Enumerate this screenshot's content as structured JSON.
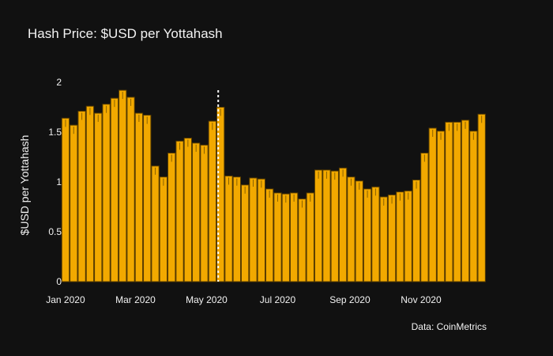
{
  "title": "Hash Price: $USD per Yottahash",
  "source": "Data: CoinMetrics",
  "colors": {
    "background": "#111111",
    "bar_fill": "#f2a900",
    "bar_border": "#5a3e00",
    "error_bar": "#8a6200",
    "text": "#f2f2f2",
    "marker_line": "#ffffff"
  },
  "chart_data": {
    "type": "bar",
    "title": "Hash Price: $USD per Yottahash",
    "ylabel": "$USD per Yottahash",
    "xlabel": "",
    "ylim": [
      0,
      2
    ],
    "yticks": [
      0,
      0.5,
      1,
      1.5,
      2
    ],
    "ytick_labels": [
      "0",
      "0.5",
      "1",
      "1.5",
      "2"
    ],
    "xlim": [
      "2019-12-30",
      "2020-12-30"
    ],
    "xticks": [
      "2020-01-01",
      "2020-03-01",
      "2020-05-01",
      "2020-07-01",
      "2020-09-01",
      "2020-11-01"
    ],
    "xtick_labels": [
      "Jan 2020",
      "Mar 2020",
      "May 2020",
      "Jul 2020",
      "Sep 2020",
      "Nov 2020"
    ],
    "grid": false,
    "legend": "none",
    "annotation_vline": {
      "x": "2020-05-11",
      "style": "dotted"
    },
    "x": [
      "2020-01-01",
      "2020-01-08",
      "2020-01-15",
      "2020-01-22",
      "2020-01-29",
      "2020-02-05",
      "2020-02-12",
      "2020-02-19",
      "2020-02-26",
      "2020-03-04",
      "2020-03-11",
      "2020-03-18",
      "2020-03-25",
      "2020-04-01",
      "2020-04-08",
      "2020-04-15",
      "2020-04-22",
      "2020-04-29",
      "2020-05-06",
      "2020-05-13",
      "2020-05-20",
      "2020-05-27",
      "2020-06-03",
      "2020-06-10",
      "2020-06-17",
      "2020-06-24",
      "2020-07-01",
      "2020-07-08",
      "2020-07-15",
      "2020-07-22",
      "2020-07-29",
      "2020-08-05",
      "2020-08-12",
      "2020-08-19",
      "2020-08-26",
      "2020-09-02",
      "2020-09-09",
      "2020-09-16",
      "2020-09-23",
      "2020-09-30",
      "2020-10-07",
      "2020-10-14",
      "2020-10-21",
      "2020-10-28",
      "2020-11-04",
      "2020-11-11",
      "2020-11-18",
      "2020-11-25",
      "2020-12-02",
      "2020-12-09",
      "2020-12-16",
      "2020-12-23"
    ],
    "values": [
      1.64,
      1.57,
      1.71,
      1.76,
      1.69,
      1.78,
      1.84,
      1.92,
      1.85,
      1.69,
      1.67,
      1.16,
      1.05,
      1.29,
      1.41,
      1.44,
      1.39,
      1.37,
      1.61,
      1.75,
      1.06,
      1.05,
      0.97,
      1.04,
      1.03,
      0.93,
      0.89,
      0.88,
      0.89,
      0.83,
      0.89,
      1.12,
      1.12,
      1.11,
      1.14,
      1.05,
      1.01,
      0.93,
      0.95,
      0.85,
      0.87,
      0.9,
      0.91,
      1.02,
      1.29,
      1.54,
      1.51,
      1.6,
      1.6,
      1.62,
      1.51,
      1.68
    ]
  }
}
